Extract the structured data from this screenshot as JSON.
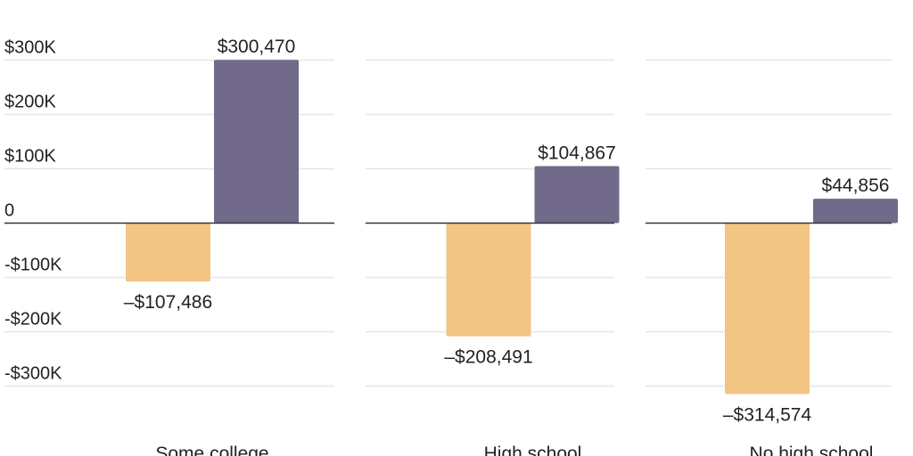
{
  "chart_data": {
    "type": "bar",
    "title": "",
    "xlabel": "",
    "ylabel": "",
    "ylim": [
      -350000,
      320000
    ],
    "y_ticks": [
      {
        "value": 300000,
        "label": "$300K"
      },
      {
        "value": 200000,
        "label": "$200K"
      },
      {
        "value": 100000,
        "label": "$100K"
      },
      {
        "value": 0,
        "label": "0"
      },
      {
        "value": -100000,
        "label": "-$100K"
      },
      {
        "value": -200000,
        "label": "-$200K"
      },
      {
        "value": -300000,
        "label": "-$300K"
      }
    ],
    "grid": true,
    "legend": "none",
    "colors": {
      "negative": "#F2C584",
      "positive": "#716A8A"
    },
    "panels": [
      {
        "label": "Some college",
        "bars": [
          {
            "value": -107486,
            "label": "–$107,486"
          },
          {
            "value": 300470,
            "label": "$300,470"
          }
        ]
      },
      {
        "label": "High school",
        "bars": [
          {
            "value": -208491,
            "label": "–$208,491"
          },
          {
            "value": 104867,
            "label": "$104,867"
          }
        ]
      },
      {
        "label": "No high school",
        "bars": [
          {
            "value": -314574,
            "label": "–$314,574"
          },
          {
            "value": 44856,
            "label": "$44,856"
          }
        ]
      }
    ]
  }
}
